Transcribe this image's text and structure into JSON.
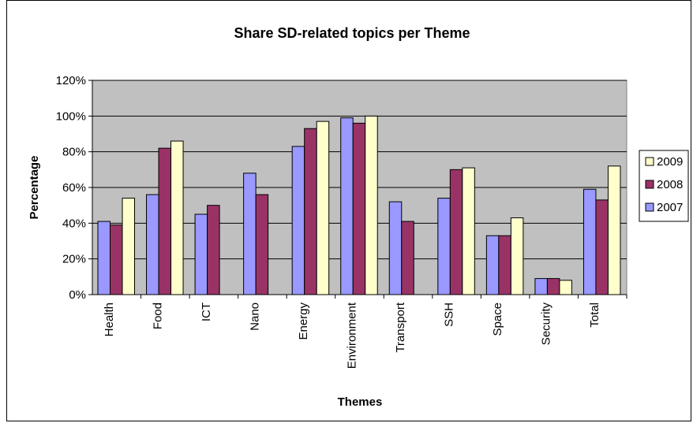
{
  "chart_data": {
    "type": "bar",
    "title": "Share SD-related topics per Theme",
    "xlabel": "Themes",
    "ylabel": "Percentage",
    "ylim": [
      0,
      120
    ],
    "yticks": [
      "0%",
      "20%",
      "40%",
      "60%",
      "80%",
      "100%",
      "120%"
    ],
    "ytick_values": [
      0,
      20,
      40,
      60,
      80,
      100,
      120
    ],
    "categories": [
      "Health",
      "Food",
      "ICT",
      "Nano",
      "Energy",
      "Environment",
      "Transport",
      "SSH",
      "Space",
      "Security",
      "Total"
    ],
    "series": [
      {
        "name": "2007",
        "color": "#9999ff",
        "values": [
          41,
          56,
          45,
          68,
          83,
          99,
          52,
          54,
          33,
          9,
          59
        ]
      },
      {
        "name": "2008",
        "color": "#993366",
        "values": [
          39,
          82,
          50,
          56,
          93,
          96,
          41,
          70,
          33,
          9,
          53
        ]
      },
      {
        "name": "2009",
        "color": "#ffffcc",
        "values": [
          54,
          86,
          null,
          null,
          97,
          100,
          null,
          71,
          43,
          8,
          72
        ]
      }
    ],
    "legend_order": [
      "2009",
      "2008",
      "2007"
    ],
    "legend_position": "right",
    "grid": true,
    "plot_background": "#c0c0c0"
  }
}
